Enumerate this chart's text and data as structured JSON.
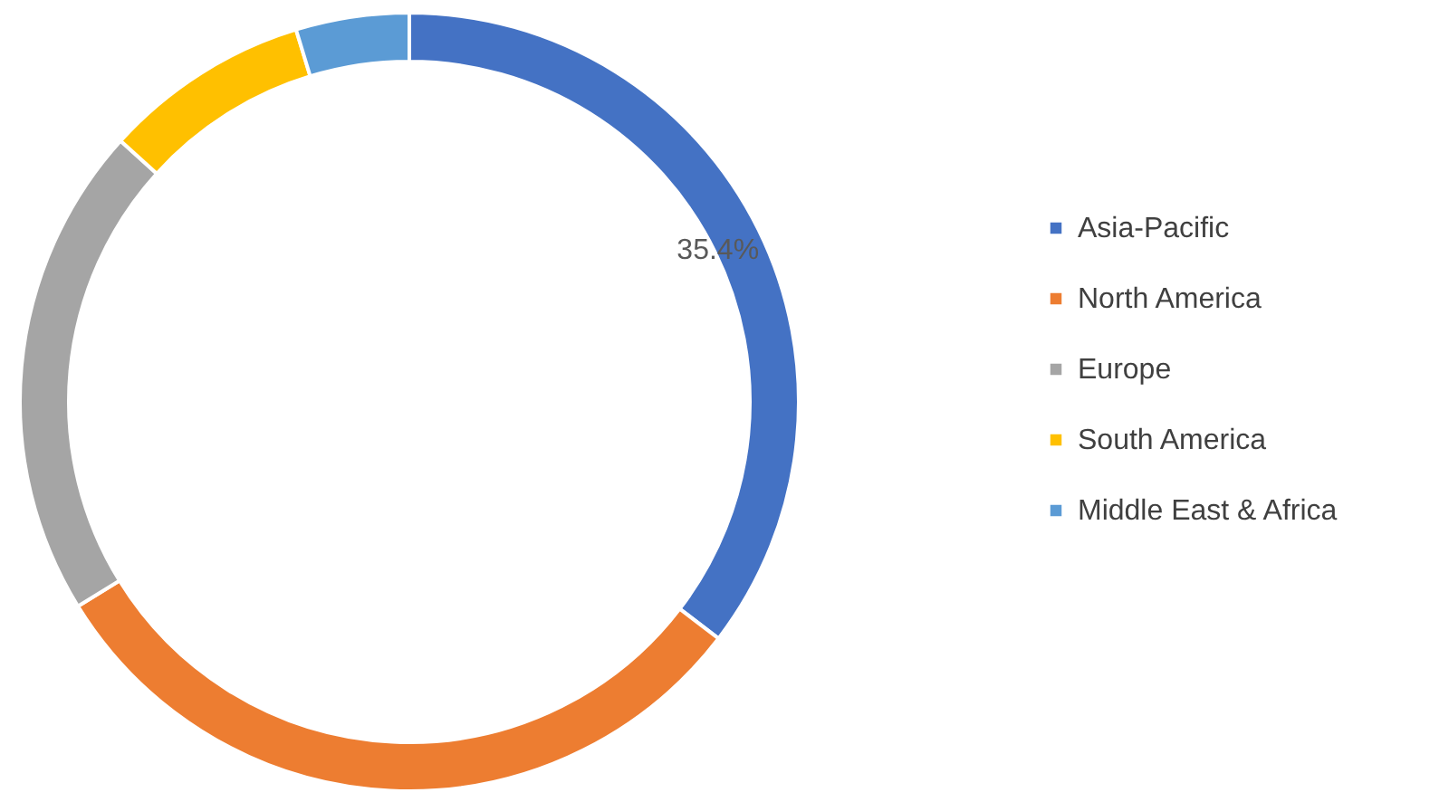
{
  "chart_data": {
    "type": "donut",
    "categories": [
      "Asia-Pacific",
      "North America",
      "Europe",
      "South America",
      "Middle East & Africa"
    ],
    "values": [
      35.4,
      30.8,
      20.5,
      8.6,
      4.7
    ],
    "colors": [
      "#4472c4",
      "#ed7d31",
      "#a5a5a5",
      "#ffc000",
      "#5b9bd5"
    ],
    "value_labels": [
      "35.4%",
      null,
      null,
      null,
      null
    ],
    "legend": "right"
  }
}
